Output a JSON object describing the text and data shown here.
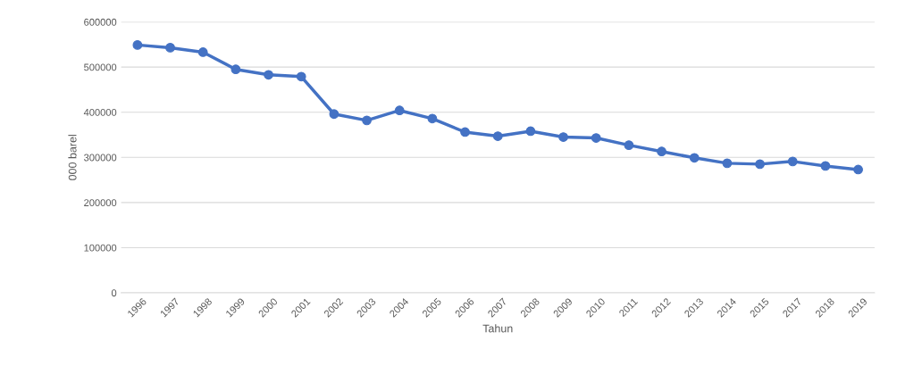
{
  "chart_data": {
    "type": "line",
    "xlabel": "Tahun",
    "ylabel": "000 barel",
    "categories": [
      "1996",
      "1997",
      "1998",
      "1999",
      "2000",
      "2001",
      "2002",
      "2003",
      "2004",
      "2005",
      "2006",
      "2007",
      "2008",
      "2009",
      "2010",
      "2011",
      "2012",
      "2013",
      "2014",
      "2015",
      "2017",
      "2018",
      "2019"
    ],
    "series": [
      {
        "color": "#4472c4",
        "values": [
          549000,
          543000,
          533000,
          495000,
          483000,
          479000,
          396000,
          382000,
          404000,
          386000,
          356000,
          347000,
          358000,
          345000,
          343000,
          327000,
          313000,
          299000,
          287000,
          285000,
          291000,
          281000,
          273000
        ]
      }
    ],
    "ylim": [
      0,
      600000
    ],
    "yticks": [
      0,
      100000,
      200000,
      300000,
      400000,
      500000,
      600000
    ],
    "grid": "y",
    "marker": "circle",
    "legend": false
  }
}
